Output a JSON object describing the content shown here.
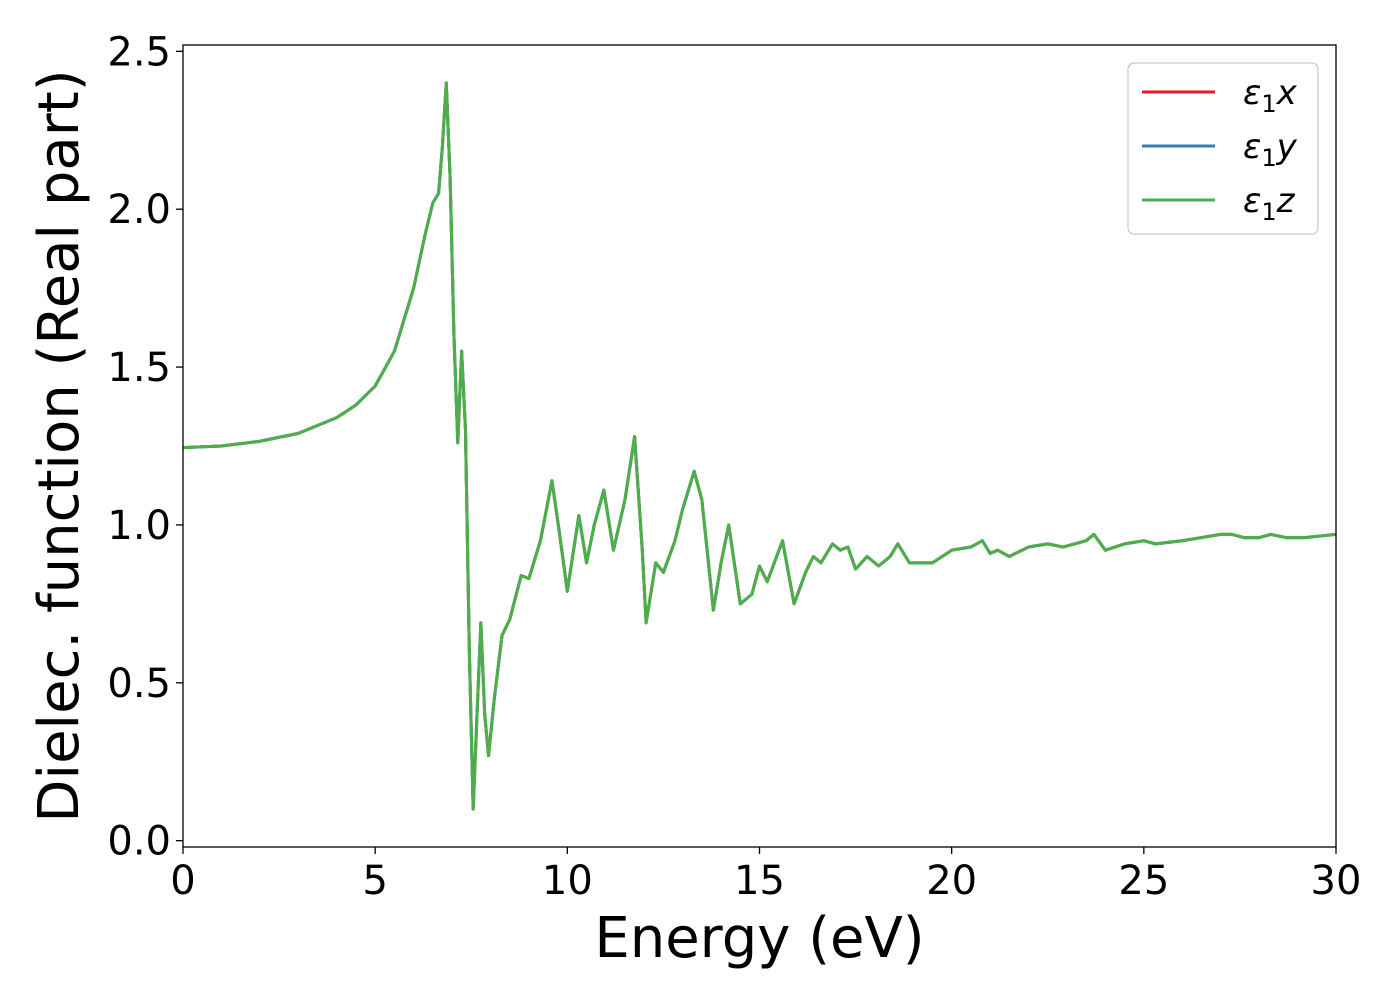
{
  "chart_data": {
    "type": "line",
    "title": "",
    "xlabel": "Energy (eV)",
    "ylabel": "Dielec. function (Real part)",
    "xlim": [
      0,
      30
    ],
    "ylim": [
      -0.02,
      2.52
    ],
    "xticks": [
      0,
      5,
      10,
      15,
      20,
      25,
      30
    ],
    "xtick_labels": [
      "0",
      "5",
      "10",
      "15",
      "20",
      "25",
      "30"
    ],
    "yticks": [
      0.0,
      0.5,
      1.0,
      1.5,
      2.0,
      2.5
    ],
    "ytick_labels": [
      "0.0",
      "0.5",
      "1.0",
      "1.5",
      "2.0",
      "2.5"
    ],
    "grid": false,
    "legend_position": "top-right",
    "series": [
      {
        "name": "ε₁x",
        "legend_base": "ε",
        "legend_sub": "1",
        "legend_suffix": "x",
        "color": "#e41a1c",
        "x": [
          0,
          1,
          2,
          3,
          4,
          4.5,
          5,
          5.5,
          6.0,
          6.3,
          6.5,
          6.65,
          6.75,
          6.85,
          6.95,
          7.05,
          7.15,
          7.25,
          7.35,
          7.45,
          7.55,
          7.65,
          7.75,
          7.85,
          7.95,
          8.1,
          8.3,
          8.5,
          8.8,
          9.0,
          9.3,
          9.6,
          9.8,
          10.0,
          10.3,
          10.5,
          10.7,
          10.95,
          11.2,
          11.5,
          11.75,
          11.95,
          12.05,
          12.3,
          12.5,
          12.8,
          13.0,
          13.3,
          13.5,
          13.8,
          14.0,
          14.2,
          14.5,
          14.8,
          15.0,
          15.2,
          15.6,
          15.9,
          16.2,
          16.4,
          16.6,
          16.9,
          17.1,
          17.3,
          17.5,
          17.8,
          18.1,
          18.4,
          18.6,
          18.9,
          19.5,
          20.0,
          20.5,
          20.8,
          21.0,
          21.2,
          21.5,
          22.0,
          22.5,
          22.9,
          23.5,
          23.7,
          24.0,
          24.5,
          25.0,
          25.3,
          26.0,
          26.5,
          27.0,
          27.3,
          27.6,
          28.0,
          28.3,
          28.7,
          29.2,
          30.0
        ],
        "values": [
          1.245,
          1.25,
          1.265,
          1.29,
          1.34,
          1.38,
          1.44,
          1.55,
          1.75,
          1.92,
          2.02,
          2.05,
          2.2,
          2.4,
          2.1,
          1.6,
          1.26,
          1.55,
          1.3,
          0.6,
          0.1,
          0.4,
          0.69,
          0.4,
          0.27,
          0.45,
          0.65,
          0.7,
          0.84,
          0.83,
          0.95,
          1.14,
          0.97,
          0.79,
          1.03,
          0.88,
          1.0,
          1.11,
          0.92,
          1.08,
          1.28,
          0.92,
          0.69,
          0.88,
          0.85,
          0.95,
          1.05,
          1.17,
          1.08,
          0.73,
          0.88,
          1.0,
          0.75,
          0.78,
          0.87,
          0.82,
          0.95,
          0.75,
          0.85,
          0.9,
          0.88,
          0.94,
          0.92,
          0.93,
          0.86,
          0.9,
          0.87,
          0.9,
          0.94,
          0.88,
          0.88,
          0.92,
          0.93,
          0.95,
          0.91,
          0.92,
          0.9,
          0.93,
          0.94,
          0.93,
          0.95,
          0.97,
          0.92,
          0.94,
          0.95,
          0.94,
          0.95,
          0.96,
          0.97,
          0.97,
          0.96,
          0.96,
          0.97,
          0.96,
          0.96,
          0.97
        ]
      },
      {
        "name": "ε₁y",
        "legend_base": "ε",
        "legend_sub": "1",
        "legend_suffix": "y",
        "color": "#377eb8",
        "x": [
          0,
          1,
          2,
          3,
          4,
          4.5,
          5,
          5.5,
          6.0,
          6.3,
          6.5,
          6.65,
          6.75,
          6.85,
          6.95,
          7.05,
          7.15,
          7.25,
          7.35,
          7.45,
          7.55,
          7.65,
          7.75,
          7.85,
          7.95,
          8.1,
          8.3,
          8.5,
          8.8,
          9.0,
          9.3,
          9.6,
          9.8,
          10.0,
          10.3,
          10.5,
          10.7,
          10.95,
          11.2,
          11.5,
          11.75,
          11.95,
          12.05,
          12.3,
          12.5,
          12.8,
          13.0,
          13.3,
          13.5,
          13.8,
          14.0,
          14.2,
          14.5,
          14.8,
          15.0,
          15.2,
          15.6,
          15.9,
          16.2,
          16.4,
          16.6,
          16.9,
          17.1,
          17.3,
          17.5,
          17.8,
          18.1,
          18.4,
          18.6,
          18.9,
          19.5,
          20.0,
          20.5,
          20.8,
          21.0,
          21.2,
          21.5,
          22.0,
          22.5,
          22.9,
          23.5,
          23.7,
          24.0,
          24.5,
          25.0,
          25.3,
          26.0,
          26.5,
          27.0,
          27.3,
          27.6,
          28.0,
          28.3,
          28.7,
          29.2,
          30.0
        ],
        "values": [
          1.245,
          1.25,
          1.265,
          1.29,
          1.34,
          1.38,
          1.44,
          1.55,
          1.75,
          1.92,
          2.02,
          2.05,
          2.2,
          2.4,
          2.1,
          1.6,
          1.26,
          1.55,
          1.3,
          0.6,
          0.1,
          0.4,
          0.69,
          0.4,
          0.27,
          0.45,
          0.65,
          0.7,
          0.84,
          0.83,
          0.95,
          1.14,
          0.97,
          0.79,
          1.03,
          0.88,
          1.0,
          1.11,
          0.92,
          1.08,
          1.28,
          0.92,
          0.69,
          0.88,
          0.85,
          0.95,
          1.05,
          1.17,
          1.08,
          0.73,
          0.88,
          1.0,
          0.75,
          0.78,
          0.87,
          0.82,
          0.95,
          0.75,
          0.85,
          0.9,
          0.88,
          0.94,
          0.92,
          0.93,
          0.86,
          0.9,
          0.87,
          0.9,
          0.94,
          0.88,
          0.88,
          0.92,
          0.93,
          0.95,
          0.91,
          0.92,
          0.9,
          0.93,
          0.94,
          0.93,
          0.95,
          0.97,
          0.92,
          0.94,
          0.95,
          0.94,
          0.95,
          0.96,
          0.97,
          0.97,
          0.96,
          0.96,
          0.97,
          0.96,
          0.96,
          0.97
        ]
      },
      {
        "name": "ε₁z",
        "legend_base": "ε",
        "legend_sub": "1",
        "legend_suffix": "z",
        "color": "#4daf4a",
        "x": [
          0,
          1,
          2,
          3,
          4,
          4.5,
          5,
          5.5,
          6.0,
          6.3,
          6.5,
          6.65,
          6.75,
          6.85,
          6.95,
          7.05,
          7.15,
          7.25,
          7.35,
          7.45,
          7.55,
          7.65,
          7.75,
          7.85,
          7.95,
          8.1,
          8.3,
          8.5,
          8.8,
          9.0,
          9.3,
          9.6,
          9.8,
          10.0,
          10.3,
          10.5,
          10.7,
          10.95,
          11.2,
          11.5,
          11.75,
          11.95,
          12.05,
          12.3,
          12.5,
          12.8,
          13.0,
          13.3,
          13.5,
          13.8,
          14.0,
          14.2,
          14.5,
          14.8,
          15.0,
          15.2,
          15.6,
          15.9,
          16.2,
          16.4,
          16.6,
          16.9,
          17.1,
          17.3,
          17.5,
          17.8,
          18.1,
          18.4,
          18.6,
          18.9,
          19.5,
          20.0,
          20.5,
          20.8,
          21.0,
          21.2,
          21.5,
          22.0,
          22.5,
          22.9,
          23.5,
          23.7,
          24.0,
          24.5,
          25.0,
          25.3,
          26.0,
          26.5,
          27.0,
          27.3,
          27.6,
          28.0,
          28.3,
          28.7,
          29.2,
          30.0
        ],
        "values": [
          1.245,
          1.25,
          1.265,
          1.29,
          1.34,
          1.38,
          1.44,
          1.55,
          1.75,
          1.92,
          2.02,
          2.05,
          2.2,
          2.4,
          2.1,
          1.6,
          1.26,
          1.55,
          1.3,
          0.6,
          0.1,
          0.4,
          0.69,
          0.4,
          0.27,
          0.45,
          0.65,
          0.7,
          0.84,
          0.83,
          0.95,
          1.14,
          0.97,
          0.79,
          1.03,
          0.88,
          1.0,
          1.11,
          0.92,
          1.08,
          1.28,
          0.92,
          0.69,
          0.88,
          0.85,
          0.95,
          1.05,
          1.17,
          1.08,
          0.73,
          0.88,
          1.0,
          0.75,
          0.78,
          0.87,
          0.82,
          0.95,
          0.75,
          0.85,
          0.9,
          0.88,
          0.94,
          0.92,
          0.93,
          0.86,
          0.9,
          0.87,
          0.9,
          0.94,
          0.88,
          0.88,
          0.92,
          0.93,
          0.95,
          0.91,
          0.92,
          0.9,
          0.93,
          0.94,
          0.93,
          0.95,
          0.97,
          0.92,
          0.94,
          0.95,
          0.94,
          0.95,
          0.96,
          0.97,
          0.97,
          0.96,
          0.96,
          0.97,
          0.96,
          0.96,
          0.97
        ]
      }
    ]
  }
}
